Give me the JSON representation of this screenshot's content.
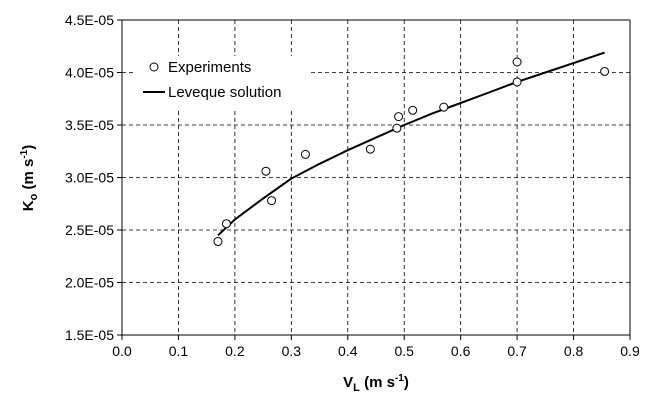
{
  "chart_data": {
    "type": "scatter",
    "title": "",
    "xlabel_main": "V",
    "xlabel_sub": "L",
    "xlabel_unit": "(m s",
    "xlabel_sup": "-1",
    "xlabel_close": ")",
    "ylabel_main": "K",
    "ylabel_sub": "o",
    "ylabel_unit": "(m s",
    "ylabel_sup": "-1",
    "ylabel_close": ")",
    "xlim": [
      0.0,
      0.9
    ],
    "ylim": [
      1.5e-05,
      4.5e-05
    ],
    "xticks": [
      0.0,
      0.1,
      0.2,
      0.3,
      0.4,
      0.5,
      0.6,
      0.7,
      0.8,
      0.9
    ],
    "xtick_labels": [
      "0.0",
      "0.1",
      "0.2",
      "0.3",
      "0.4",
      "0.5",
      "0.6",
      "0.7",
      "0.8",
      "0.9"
    ],
    "yticks": [
      1.5e-05,
      2e-05,
      2.5e-05,
      3e-05,
      3.5e-05,
      4e-05,
      4.5e-05
    ],
    "ytick_labels": [
      "1.5E-05",
      "2.0E-05",
      "2.5E-05",
      "3.0E-05",
      "3.5E-05",
      "4.0E-05",
      "4.5E-05"
    ],
    "grid": true,
    "legend_position": "top-left",
    "series": [
      {
        "name": "Experiments",
        "kind": "markers",
        "marker": "open-circle",
        "x": [
          0.17,
          0.185,
          0.255,
          0.265,
          0.325,
          0.44,
          0.487,
          0.49,
          0.515,
          0.57,
          0.7,
          0.7,
          0.855
        ],
        "y": [
          2.39e-05,
          2.56e-05,
          3.06e-05,
          2.78e-05,
          3.22e-05,
          3.27e-05,
          3.47e-05,
          3.58e-05,
          3.64e-05,
          3.67e-05,
          4.1e-05,
          3.91e-05,
          4.01e-05
        ]
      },
      {
        "name": "Leveque solution",
        "kind": "line",
        "color": "#000000",
        "x": [
          0.17,
          0.2,
          0.25,
          0.3,
          0.35,
          0.4,
          0.45,
          0.5,
          0.55,
          0.6,
          0.65,
          0.7,
          0.75,
          0.8,
          0.855
        ],
        "y": [
          2.45e-05,
          2.6e-05,
          2.8e-05,
          2.99e-05,
          3.13e-05,
          3.26e-05,
          3.38e-05,
          3.5e-05,
          3.61e-05,
          3.71e-05,
          3.81e-05,
          3.91e-05,
          4e-05,
          4.09e-05,
          4.19e-05
        ]
      }
    ]
  }
}
